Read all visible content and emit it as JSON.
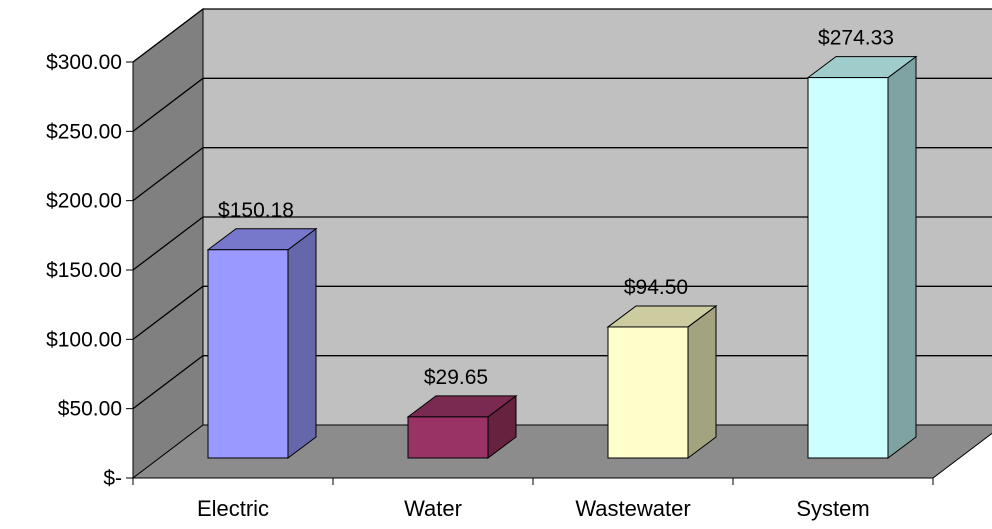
{
  "chart_data": {
    "type": "bar",
    "categories": [
      "Electric",
      "Water",
      "Wastewater",
      "System"
    ],
    "values": [
      150.18,
      29.65,
      94.5,
      274.33
    ],
    "data_labels": [
      "$150.18",
      "$29.65",
      "$94.50",
      "$274.33"
    ],
    "y_tick_values": [
      0,
      50,
      100,
      150,
      200,
      250,
      300
    ],
    "y_tick_labels": [
      "$-",
      "$50.00",
      "$100.00",
      "$150.00",
      "$200.00",
      "$250.00",
      "$300.00"
    ],
    "ylim": [
      0,
      300
    ],
    "three_d": true,
    "grid": true,
    "legend": "none",
    "colors": {
      "bars": [
        {
          "front": "#9999ff",
          "side": "#6666aa",
          "top": "#7777cc"
        },
        {
          "front": "#993366",
          "side": "#66223f",
          "top": "#7a2a50"
        },
        {
          "front": "#ffffcc",
          "side": "#a3a37f",
          "top": "#cccca0"
        },
        {
          "front": "#ccffff",
          "side": "#7fa3a3",
          "top": "#a0cccc"
        }
      ],
      "back_wall": "#c0c0c0",
      "side_wall": "#808080",
      "floor": "#8c8c8c"
    }
  }
}
